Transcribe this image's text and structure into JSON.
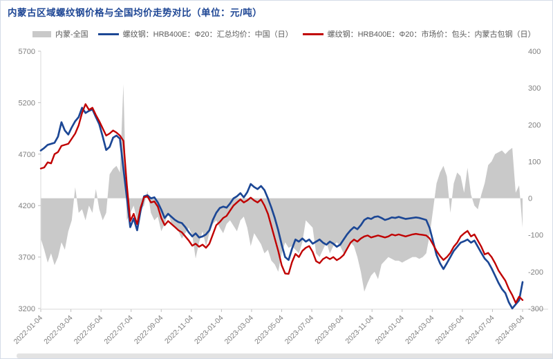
{
  "legend": [
    {
      "label": "内蒙-全国",
      "type": "area",
      "color": "#c9c9c9"
    },
    {
      "label": "螺纹钢：HRB400E：Φ20：汇总均价：中国（日）",
      "type": "line",
      "color": "#1c4795"
    },
    {
      "label": "螺纹钢：HRB400E：Φ20：市场价：包头：内蒙古包钢（日）",
      "type": "line",
      "color": "#c00000"
    }
  ],
  "chart_data": {
    "type": "line",
    "title": "内蒙古区域螺纹钢价格与全国均价走势对比（单位：元/吨）",
    "unit": "元/吨",
    "y_left": {
      "min": 3200,
      "max": 5700,
      "ticks": [
        3200,
        3700,
        4200,
        4700,
        5200,
        5700
      ]
    },
    "y_right": {
      "min": -300,
      "max": 400,
      "ticks": [
        -300,
        -200,
        -100,
        0,
        100,
        200,
        300,
        400
      ]
    },
    "x_tick_labels": [
      "2022-01-04",
      "2022-03-04",
      "2022-05-04",
      "2022-07-04",
      "2022-09-04",
      "2022-11-04",
      "2023-01-04",
      "2023-03-04",
      "2023-05-04",
      "2023-07-04",
      "2023-09-04",
      "2023-11-04",
      "2024-01-04",
      "2024-03-04",
      "2024-05-04",
      "2024-07-04",
      "2024-09-04"
    ],
    "grid": false,
    "legend_position": "top",
    "x": [
      "2022-01-04",
      "2022-01-11",
      "2022-01-18",
      "2022-01-25",
      "2022-02-01",
      "2022-02-08",
      "2022-02-15",
      "2022-02-22",
      "2022-03-01",
      "2022-03-08",
      "2022-03-15",
      "2022-03-22",
      "2022-03-29",
      "2022-04-05",
      "2022-04-12",
      "2022-04-19",
      "2022-04-26",
      "2022-05-03",
      "2022-05-10",
      "2022-05-17",
      "2022-05-24",
      "2022-05-31",
      "2022-06-07",
      "2022-06-14",
      "2022-06-21",
      "2022-06-28",
      "2022-07-05",
      "2022-07-12",
      "2022-07-19",
      "2022-07-26",
      "2022-08-02",
      "2022-08-09",
      "2022-08-16",
      "2022-08-23",
      "2022-08-30",
      "2022-09-06",
      "2022-09-13",
      "2022-09-20",
      "2022-09-27",
      "2022-10-04",
      "2022-10-11",
      "2022-10-18",
      "2022-10-25",
      "2022-11-01",
      "2022-11-08",
      "2022-11-15",
      "2022-11-22",
      "2022-11-29",
      "2022-12-06",
      "2022-12-13",
      "2022-12-20",
      "2022-12-27",
      "2023-01-03",
      "2023-01-10",
      "2023-01-17",
      "2023-01-24",
      "2023-01-31",
      "2023-02-07",
      "2023-02-14",
      "2023-02-21",
      "2023-02-28",
      "2023-03-07",
      "2023-03-14",
      "2023-03-21",
      "2023-03-28",
      "2023-04-04",
      "2023-04-11",
      "2023-04-18",
      "2023-04-25",
      "2023-05-02",
      "2023-05-09",
      "2023-05-16",
      "2023-05-23",
      "2023-05-30",
      "2023-06-06",
      "2023-06-13",
      "2023-06-20",
      "2023-06-27",
      "2023-07-04",
      "2023-07-11",
      "2023-07-18",
      "2023-07-25",
      "2023-08-01",
      "2023-08-08",
      "2023-08-15",
      "2023-08-22",
      "2023-08-29",
      "2023-09-05",
      "2023-09-12",
      "2023-09-19",
      "2023-09-26",
      "2023-10-03",
      "2023-10-10",
      "2023-10-17",
      "2023-10-24",
      "2023-10-31",
      "2023-11-07",
      "2023-11-14",
      "2023-11-21",
      "2023-11-28",
      "2023-12-05",
      "2023-12-12",
      "2023-12-19",
      "2023-12-26",
      "2024-01-02",
      "2024-01-09",
      "2024-01-16",
      "2024-01-23",
      "2024-01-30",
      "2024-02-06",
      "2024-02-13",
      "2024-02-20",
      "2024-02-27",
      "2024-03-05",
      "2024-03-12",
      "2024-03-19",
      "2024-03-26",
      "2024-04-02",
      "2024-04-09",
      "2024-04-16",
      "2024-04-23",
      "2024-04-30",
      "2024-05-07",
      "2024-05-14",
      "2024-05-21",
      "2024-05-28",
      "2024-06-04",
      "2024-06-11",
      "2024-06-18",
      "2024-06-25",
      "2024-07-02",
      "2024-07-09",
      "2024-07-16",
      "2024-07-23",
      "2024-07-30",
      "2024-08-06",
      "2024-08-13",
      "2024-08-20",
      "2024-08-27",
      "2024-09-03",
      "2024-09-10"
    ],
    "series": [
      {
        "name": "内蒙-全国",
        "axis": "right",
        "type": "area",
        "color": "#c9c9c9",
        "values": [
          -110,
          -140,
          -175,
          -150,
          -182,
          -160,
          -120,
          -140,
          -90,
          -60,
          30,
          -40,
          -30,
          -60,
          -20,
          -40,
          25,
          -30,
          -60,
          -40,
          65,
          80,
          88,
          70,
          310,
          -60,
          -40,
          -20,
          -60,
          -30,
          -20,
          20,
          -40,
          -60,
          -50,
          -90,
          -70,
          -40,
          -70,
          -80,
          -90,
          -110,
          -95,
          -80,
          -100,
          -164,
          -120,
          -90,
          -130,
          -95,
          -70,
          -60,
          -80,
          -95,
          -70,
          -60,
          -75,
          -90,
          -60,
          -50,
          -80,
          -130,
          -95,
          -110,
          -125,
          -150,
          -140,
          -170,
          -180,
          -200,
          -150,
          -120,
          -135,
          -130,
          -140,
          -150,
          -120,
          -60,
          -70,
          -80,
          -150,
          -160,
          -140,
          -120,
          -150,
          -130,
          -120,
          -130,
          -150,
          -140,
          -120,
          -130,
          -160,
          -200,
          -254,
          -230,
          -210,
          -200,
          -220,
          -180,
          -170,
          -160,
          -165,
          -170,
          -170,
          -175,
          -170,
          -165,
          -160,
          -160,
          -165,
          -160,
          -150,
          -100,
          -30,
          40,
          70,
          88,
          60,
          -40,
          40,
          70,
          60,
          15,
          83,
          10,
          -20,
          -30,
          10,
          41,
          90,
          100,
          120,
          125,
          130,
          120,
          130,
          137,
          15,
          35,
          -80
        ]
      },
      {
        "name": "螺纹钢：HRB400E：Φ20：汇总均价：中国（日）",
        "axis": "left",
        "type": "line",
        "color": "#1c4795",
        "values": [
          4735,
          4760,
          4790,
          4800,
          4810,
          4870,
          5010,
          4930,
          4890,
          4960,
          5020,
          5060,
          5150,
          5100,
          5120,
          5135,
          5060,
          4990,
          4870,
          4740,
          4770,
          4860,
          4880,
          4850,
          4560,
          4280,
          3990,
          4075,
          3960,
          4150,
          4290,
          4300,
          4270,
          4280,
          4230,
          4160,
          4080,
          4120,
          4090,
          4060,
          4040,
          4030,
          3990,
          3940,
          3900,
          3930,
          3890,
          3900,
          3920,
          3960,
          4060,
          4130,
          4176,
          4190,
          4180,
          4220,
          4270,
          4290,
          4320,
          4280,
          4330,
          4410,
          4380,
          4360,
          4390,
          4350,
          4270,
          4180,
          4080,
          3960,
          3820,
          3700,
          3672,
          3780,
          3870,
          3850,
          3880,
          3850,
          3870,
          3830,
          3850,
          3870,
          3840,
          3820,
          3850,
          3830,
          3800,
          3820,
          3870,
          3920,
          3960,
          3990,
          3970,
          4010,
          4060,
          4080,
          4070,
          4090,
          4095,
          4080,
          4060,
          4070,
          4085,
          4080,
          4090,
          4080,
          4070,
          4075,
          4080,
          4085,
          4080,
          4070,
          4060,
          3980,
          3850,
          3720,
          3640,
          3584,
          3640,
          3700,
          3760,
          3800,
          3840,
          3853,
          3870,
          3840,
          3860,
          3800,
          3740,
          3685,
          3650,
          3590,
          3520,
          3450,
          3390,
          3350,
          3260,
          3201,
          3240,
          3280,
          3457
        ]
      },
      {
        "name": "螺纹钢：HRB400E：Φ20：市场价：包头：内蒙古包钢（日）",
        "axis": "left",
        "type": "line",
        "color": "#c00000",
        "values": [
          4560,
          4570,
          4620,
          4610,
          4700,
          4720,
          4780,
          4790,
          4800,
          4850,
          4900,
          4980,
          5100,
          5186,
          5130,
          5150,
          5080,
          5020,
          4950,
          4880,
          4900,
          4930,
          4910,
          4880,
          4830,
          4400,
          4050,
          4120,
          4020,
          4180,
          4280,
          4290,
          4230,
          4240,
          4190,
          4080,
          4010,
          4050,
          4020,
          3990,
          3960,
          3940,
          3900,
          3860,
          3810,
          3830,
          3800,
          3820,
          3790,
          3830,
          3920,
          4010,
          4040,
          4080,
          4100,
          4150,
          4200,
          4230,
          4260,
          4230,
          4250,
          4277,
          4250,
          4230,
          4260,
          4200,
          4120,
          4000,
          3880,
          3760,
          3620,
          3540,
          3537,
          3650,
          3730,
          3700,
          3760,
          3790,
          3807,
          3750,
          3660,
          3640,
          3680,
          3700,
          3680,
          3700,
          3670,
          3690,
          3720,
          3780,
          3840,
          3870,
          3850,
          3880,
          3900,
          3910,
          3890,
          3900,
          3910,
          3900,
          3890,
          3900,
          3920,
          3910,
          3920,
          3910,
          3900,
          3910,
          3920,
          3925,
          3920,
          3915,
          3910,
          3880,
          3820,
          3760,
          3710,
          3672,
          3700,
          3740,
          3800,
          3840,
          3900,
          3930,
          3954,
          3900,
          3920,
          3860,
          3800,
          3726,
          3740,
          3700,
          3640,
          3570,
          3520,
          3470,
          3390,
          3330,
          3255,
          3315,
          3282
        ]
      }
    ]
  }
}
